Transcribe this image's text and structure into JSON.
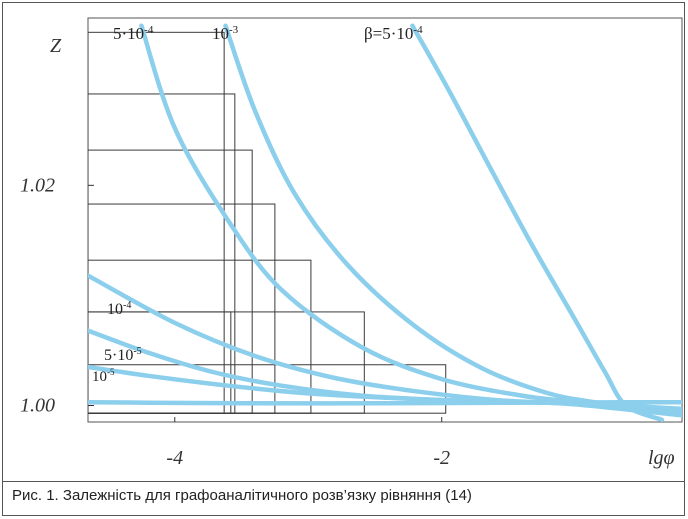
{
  "caption": "Рис. 1. Залежність для графоаналітичного розв’язку рівняння (14)",
  "chart_data": {
    "type": "line",
    "title": "",
    "xlabel": "lgφ",
    "ylabel": "Z",
    "xlim": [
      -4.65,
      -0.2
    ],
    "ylim": [
      0.9985,
      1.0352
    ],
    "x_ticks": [
      {
        "value": -4,
        "label": "-4"
      },
      {
        "value": -2,
        "label": "-2"
      }
    ],
    "y_ticks": [
      {
        "value": 1.0,
        "label": "1.00"
      },
      {
        "value": 1.02,
        "label": "1.02"
      }
    ],
    "grid": false,
    "curve_color": "#8ccfec",
    "series": [
      {
        "id": "b1e-5",
        "label": "10",
        "exponent": "-5",
        "points": [
          [
            -4.65,
            1.0003
          ],
          [
            -4.2,
            1.00025
          ],
          [
            -3.5,
            1.0002
          ],
          [
            -2.5,
            1.0002
          ],
          [
            -1.5,
            1.00025
          ],
          [
            -0.6,
            1.0003
          ],
          [
            -0.2,
            1.0003
          ]
        ]
      },
      {
        "id": "b5e-5",
        "label": "5·10",
        "exponent": "-5",
        "points": [
          [
            -4.65,
            1.0035
          ],
          [
            -4.2,
            1.0027
          ],
          [
            -3.6,
            1.0018
          ],
          [
            -3.0,
            1.0011
          ],
          [
            -2.4,
            1.0007
          ],
          [
            -1.8,
            1.0004
          ],
          [
            -1.0,
            1.0002
          ],
          [
            -0.2,
            0.9997
          ]
        ]
      },
      {
        "id": "b1e-4",
        "label": "10",
        "exponent": "-4",
        "points": [
          [
            -4.65,
            1.0068
          ],
          [
            -4.2,
            1.0048
          ],
          [
            -3.7,
            1.003
          ],
          [
            -3.2,
            1.0018
          ],
          [
            -2.6,
            1.0009
          ],
          [
            -2.0,
            1.0005
          ],
          [
            -1.4,
            1.0003
          ],
          [
            -0.9,
            1.0001
          ],
          [
            -0.2,
            0.9994
          ]
        ]
      },
      {
        "id": "b5e-4-low",
        "label": "",
        "exponent": "",
        "points": [
          [
            -4.65,
            1.0118
          ],
          [
            -4.0,
            1.0075
          ],
          [
            -3.4,
            1.0045
          ],
          [
            -2.8,
            1.0025
          ],
          [
            -2.2,
            1.0013
          ],
          [
            -1.6,
            1.0005
          ],
          [
            -1.0,
            1.0001
          ],
          [
            -0.2,
            0.9991
          ]
        ]
      },
      {
        "id": "b5e-4-top",
        "label": "5·10",
        "exponent": "-4",
        "points": [
          [
            -4.25,
            1.0345
          ],
          [
            -4.0,
            1.0252
          ],
          [
            -3.6,
            1.0168
          ],
          [
            -3.2,
            1.0105
          ],
          [
            -2.6,
            1.0053
          ],
          [
            -2.0,
            1.0024
          ],
          [
            -1.4,
            1.0009
          ],
          [
            -0.9,
            1.0002
          ],
          [
            -0.2,
            0.9993
          ]
        ]
      },
      {
        "id": "b1e-3",
        "label": "10",
        "exponent": "-3",
        "points": [
          [
            -3.62,
            1.0345
          ],
          [
            -3.4,
            1.0268
          ],
          [
            -3.1,
            1.0192
          ],
          [
            -2.7,
            1.0127
          ],
          [
            -2.2,
            1.0072
          ],
          [
            -1.7,
            1.0034
          ],
          [
            -1.2,
            1.0011
          ],
          [
            -0.8,
            1.0002
          ],
          [
            -0.2,
            0.9992
          ]
        ]
      },
      {
        "id": "beta5e-4",
        "label": "β=5·10",
        "exponent": "-4",
        "points": [
          [
            -2.22,
            1.0345
          ],
          [
            -1.95,
            1.0287
          ],
          [
            -1.62,
            1.0212
          ],
          [
            -1.32,
            1.0145
          ],
          [
            -1.02,
            1.0082
          ],
          [
            -0.78,
            1.0031
          ],
          [
            -0.62,
            1.0
          ],
          [
            -0.35,
            0.9987
          ]
        ]
      }
    ],
    "rectangles": [
      {
        "x": [
          -4.65,
          -3.63
        ],
        "y": [
          0.9993,
          1.0339
        ]
      },
      {
        "x": [
          -4.65,
          -3.55
        ],
        "y": [
          0.9993,
          1.0283
        ]
      },
      {
        "x": [
          -4.65,
          -3.42
        ],
        "y": [
          0.9993,
          1.0232
        ]
      },
      {
        "x": [
          -4.65,
          -3.25
        ],
        "y": [
          0.9993,
          1.0183
        ]
      },
      {
        "x": [
          -4.65,
          -2.98
        ],
        "y": [
          0.9993,
          1.0132
        ]
      },
      {
        "x": [
          -4.65,
          -2.58
        ],
        "y": [
          0.9993,
          1.0085
        ]
      },
      {
        "x": [
          -4.65,
          -1.97
        ],
        "y": [
          0.9993,
          1.0037
        ]
      },
      {
        "x": [
          -4.65,
          -3.58
        ],
        "y": [
          0.9993,
          1.0085
        ]
      }
    ]
  }
}
